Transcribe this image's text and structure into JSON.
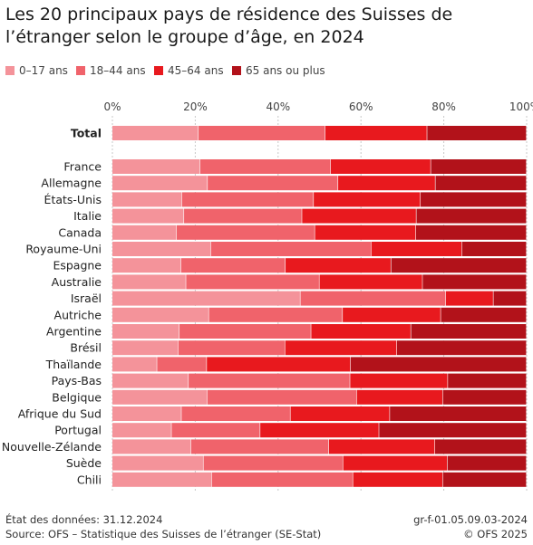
{
  "title": "Les 20 principaux pays de résidence des Suisses de l’étranger selon le groupe d’âge, en 2024",
  "chart_data": {
    "type": "bar",
    "orientation": "horizontal",
    "stacked": "percent",
    "title": "Les 20 principaux pays de résidence des Suisses de l’étranger selon le groupe d’âge, en 2024",
    "xlim": [
      0,
      100
    ],
    "x_ticks": [
      "0%",
      "20%",
      "40%",
      "60%",
      "80%",
      "100%"
    ],
    "grid": true,
    "legend_position": "top-left",
    "categories": [
      "Total",
      "France",
      "Allemagne",
      "États-Unis",
      "Italie",
      "Canada",
      "Royaume-Uni",
      "Espagne",
      "Australie",
      "Israël",
      "Autriche",
      "Argentine",
      "Brésil",
      "Thaïlande",
      "Pays-Bas",
      "Belgique",
      "Afrique du Sud",
      "Portugal",
      "Nouvelle-Zélande",
      "Suède",
      "Chili"
    ],
    "series": [
      {
        "name": "0–17 ans",
        "color": "#f4939a",
        "values": [
          20.8,
          21.2,
          23.0,
          16.8,
          17.3,
          15.5,
          23.8,
          16.6,
          17.8,
          45.4,
          23.3,
          16.2,
          15.9,
          10.8,
          18.4,
          22.9,
          16.7,
          14.3,
          19.0,
          22.0,
          24.0
        ]
      },
      {
        "name": "18–44 ans",
        "color": "#f0636b",
        "values": [
          30.6,
          31.5,
          31.5,
          31.8,
          28.5,
          33.4,
          38.7,
          25.2,
          32.2,
          35.1,
          32.3,
          31.8,
          25.8,
          12.0,
          39.0,
          36.1,
          26.3,
          21.4,
          33.3,
          33.7,
          34.1
        ]
      },
      {
        "name": "45–64 ans",
        "color": "#e8191e",
        "values": [
          24.6,
          24.2,
          23.5,
          25.8,
          27.6,
          24.4,
          21.9,
          25.5,
          24.9,
          11.5,
          23.7,
          24.1,
          27.0,
          34.7,
          23.6,
          20.8,
          24.0,
          28.7,
          25.6,
          25.2,
          21.7
        ]
      },
      {
        "name": "65 ans ou plus",
        "color": "#b2121a",
        "values": [
          24.0,
          23.1,
          22.0,
          25.6,
          26.6,
          26.7,
          15.6,
          32.7,
          25.1,
          8.0,
          20.7,
          27.9,
          31.3,
          42.5,
          19.0,
          20.2,
          33.0,
          35.6,
          22.1,
          19.1,
          20.2
        ]
      }
    ]
  },
  "footer": {
    "date_note": "État des données: 31.12.2024",
    "source": "Source: OFS – Statistique des Suisses de l’étranger (SE-Stat)",
    "code": "gr-f-01.05.09.03-2024",
    "copyright": "© OFS 2025"
  }
}
